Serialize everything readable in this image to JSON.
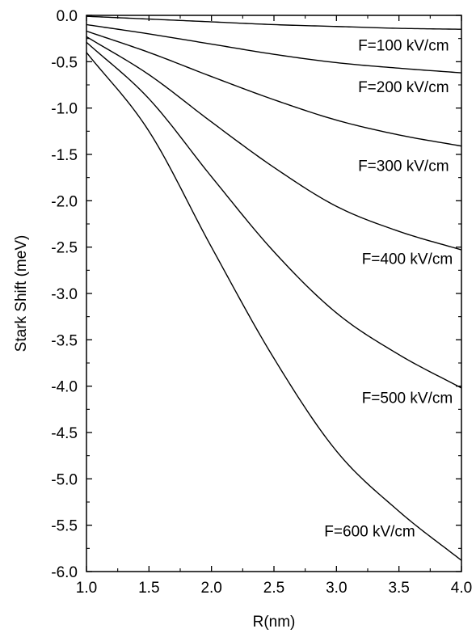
{
  "chart_data": {
    "type": "line",
    "xlabel": "R(nm)",
    "ylabel": "Stark Shift (meV)",
    "xlim": [
      1.0,
      4.0
    ],
    "ylim": [
      -6.0,
      0.0
    ],
    "x_ticks": [
      "1.0",
      "1.5",
      "2.0",
      "2.5",
      "3.0",
      "3.5",
      "4.0"
    ],
    "y_ticks": [
      "0.0",
      "-0.5",
      "-1.0",
      "-1.5",
      "-2.0",
      "-2.5",
      "-3.0",
      "-3.5",
      "-4.0",
      "-4.5",
      "-5.0",
      "-5.5",
      "-6.0"
    ],
    "grid": false,
    "legend": "none",
    "x": [
      1.0,
      1.5,
      2.0,
      2.5,
      3.0,
      3.5,
      4.0
    ],
    "series": [
      {
        "name": "F=100 kV/cm",
        "values": [
          -0.01,
          -0.04,
          -0.07,
          -0.1,
          -0.12,
          -0.14,
          -0.15
        ]
      },
      {
        "name": "F=200 kV/cm",
        "values": [
          -0.1,
          -0.2,
          -0.31,
          -0.42,
          -0.51,
          -0.57,
          -0.62
        ]
      },
      {
        "name": "F=300 kV/cm",
        "values": [
          -0.17,
          -0.4,
          -0.66,
          -0.91,
          -1.13,
          -1.29,
          -1.41
        ]
      },
      {
        "name": "F=400 kV/cm",
        "values": [
          -0.23,
          -0.64,
          -1.15,
          -1.64,
          -2.06,
          -2.33,
          -2.53
        ]
      },
      {
        "name": "F=500 kV/cm",
        "values": [
          -0.29,
          -0.9,
          -1.74,
          -2.55,
          -3.21,
          -3.66,
          -4.02
        ]
      },
      {
        "name": "F=600 kV/cm",
        "values": [
          -0.4,
          -1.25,
          -2.5,
          -3.7,
          -4.7,
          -5.35,
          -5.88
        ]
      }
    ]
  }
}
